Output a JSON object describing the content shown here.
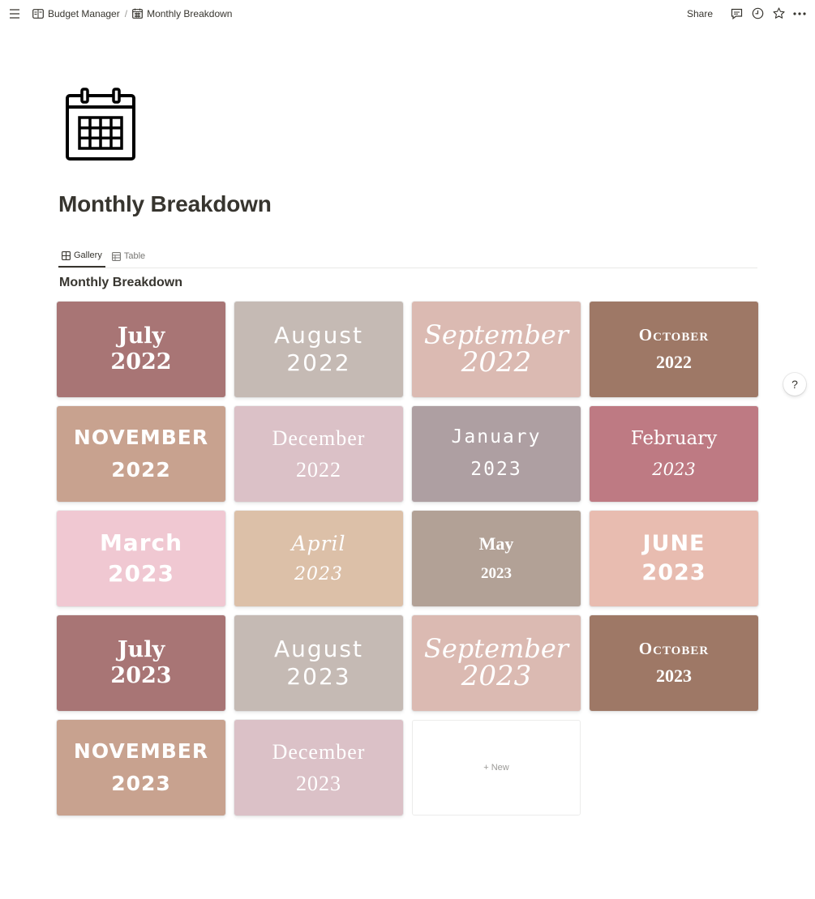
{
  "topbar": {
    "breadcrumb": [
      {
        "label": "Budget Manager",
        "icon": "book-icon"
      },
      {
        "label": "Monthly Breakdown",
        "icon": "calendar-icon"
      }
    ],
    "separator": "/",
    "share_label": "Share"
  },
  "page": {
    "icon": "calendar-icon",
    "title": "Monthly Breakdown"
  },
  "views": {
    "tabs": [
      {
        "label": "Gallery",
        "icon": "gallery-icon",
        "active": true
      },
      {
        "label": "Table",
        "icon": "table-icon",
        "active": false
      }
    ]
  },
  "database": {
    "title": "Monthly Breakdown",
    "cards": [
      {
        "month": "July",
        "year": "2022",
        "bg": "#a87575",
        "style": "bold"
      },
      {
        "month": "August",
        "year": "2022",
        "bg": "#c5bab4",
        "style": "wide"
      },
      {
        "month": "September",
        "year": "2022",
        "bg": "#dbbab2",
        "style": "script"
      },
      {
        "month": "October",
        "year": "2022",
        "bg": "#9e7866",
        "style": "caps"
      },
      {
        "month": "NOVEMBER",
        "year": "2022",
        "bg": "#c8a28f",
        "style": "sansbold"
      },
      {
        "month": "December",
        "year": "2022",
        "bg": "#dbc1c7",
        "style": "thin"
      },
      {
        "month": "January",
        "year": "2023",
        "bg": "#ae9fa2",
        "style": "mono"
      },
      {
        "month": "February",
        "year": "2023",
        "bg": "#be7a83",
        "style": "elegant"
      },
      {
        "month": "March",
        "year": "2023",
        "bg": "#f0c8d2",
        "style": "rounded"
      },
      {
        "month": "April",
        "year": "2023",
        "bg": "#dcc0a8",
        "style": "italic"
      },
      {
        "month": "May",
        "year": "2023",
        "bg": "#b2a196",
        "style": "heavy"
      },
      {
        "month": "JUNE",
        "year": "2023",
        "bg": "#e8bcb0",
        "style": "block"
      },
      {
        "month": "July",
        "year": "2023",
        "bg": "#a87575",
        "style": "bold"
      },
      {
        "month": "August",
        "year": "2023",
        "bg": "#c5bab4",
        "style": "wide"
      },
      {
        "month": "September",
        "year": "2023",
        "bg": "#dbbab2",
        "style": "script"
      },
      {
        "month": "October",
        "year": "2023",
        "bg": "#9e7866",
        "style": "caps"
      },
      {
        "month": "NOVEMBER",
        "year": "2023",
        "bg": "#c8a28f",
        "style": "sansbold"
      },
      {
        "month": "December",
        "year": "2023",
        "bg": "#dbc1c7",
        "style": "thin"
      }
    ],
    "new_label": "+ New"
  },
  "help_label": "?"
}
